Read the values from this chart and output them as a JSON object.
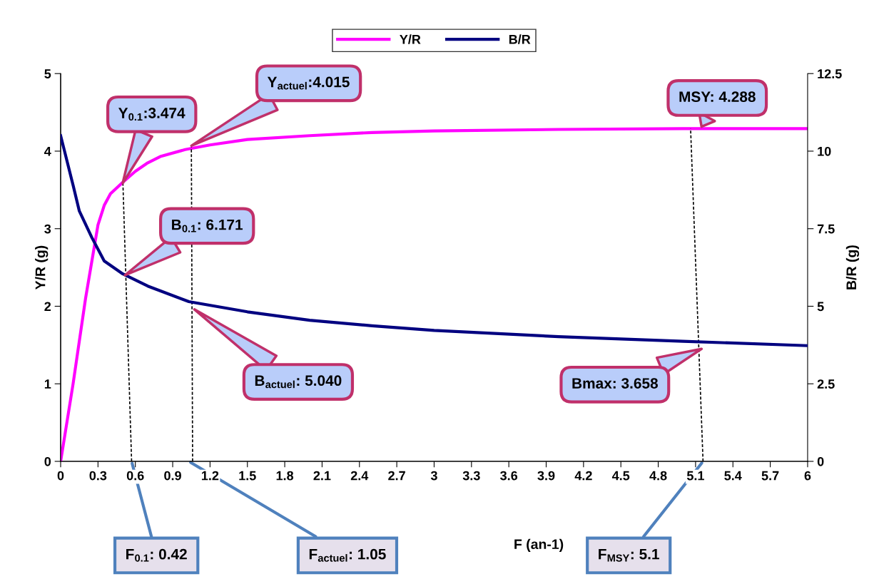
{
  "chart_data": {
    "type": "line",
    "xlabel": "F (an-1)",
    "ylabel": "Y/R (g)",
    "y2label": "B/R (g)",
    "series": [
      {
        "name": "Y/R",
        "color": "#ff00ff",
        "x": [
          0,
          0.1,
          0.2,
          0.3,
          0.35,
          0.4,
          0.5,
          0.6,
          0.7,
          0.8,
          1.0,
          1.2,
          1.5,
          2.0,
          2.5,
          3.0,
          4.0,
          5.0,
          6.0
        ],
        "values": [
          0,
          1.0,
          2.1,
          3.05,
          3.3,
          3.45,
          3.6,
          3.74,
          3.85,
          3.93,
          4.02,
          4.08,
          4.15,
          4.2,
          4.24,
          4.26,
          4.28,
          4.29,
          4.29
        ]
      },
      {
        "name": "B/R",
        "color": "#000080",
        "axis": "y2",
        "x": [
          0,
          0.1,
          0.15,
          0.25,
          0.35,
          0.5,
          0.7,
          1.03,
          1.5,
          2.0,
          2.5,
          3.0,
          4.0,
          5.0,
          6.0
        ],
        "values": [
          10.5,
          8.9,
          8.07,
          7.22,
          6.46,
          6.04,
          5.65,
          5.15,
          4.82,
          4.55,
          4.37,
          4.22,
          4.02,
          3.87,
          3.73
        ]
      },
      {
        "color": "#000000",
        "line_style": "dashed",
        "x": [
          0.57,
          0.5
        ],
        "values": [
          0,
          3.6
        ]
      },
      {
        "color": "#000000",
        "line_style": "dashed",
        "x": [
          1.06,
          1.05
        ],
        "values": [
          0,
          4.05
        ]
      },
      {
        "color": "#000000",
        "line_style": "dashed",
        "x": [
          5.16,
          5.06
        ],
        "values": [
          0,
          4.29
        ]
      }
    ],
    "xlim": [
      0,
      6
    ],
    "xticks": [
      0,
      0.3,
      0.6,
      0.9,
      1.2,
      1.5,
      1.8,
      2.1,
      2.4,
      2.7,
      3,
      3.3,
      3.6,
      3.9,
      4.2,
      4.5,
      4.8,
      5.1,
      5.4,
      5.7,
      6
    ],
    "ylim": [
      0,
      5
    ],
    "yticks": [
      0,
      1,
      2,
      3,
      4,
      5
    ],
    "y2lim": [
      0,
      12.5
    ],
    "y2ticks": [
      0,
      2.5,
      5,
      7.5,
      10,
      12.5
    ],
    "grid": false,
    "legend": "top",
    "annotations": [
      "Y$_{0.1}$:3.474",
      "Y$_{actuel}$:4.015",
      "MSY: 4.288",
      "B$_{0.1}$: 6.171",
      "B$_{actuel}$: 5.040",
      "Bmax: 3.658",
      {
        "text": "F$_{0.1}$: 0.42",
        "x": 0.57,
        "y": 0
      },
      {
        "text": "F$_{actuel}$: 1.05",
        "x": 1.03,
        "y": 0
      },
      {
        "text": "F$_{MSY}$: 5.1",
        "x": 5.16,
        "y": 0
      }
    ]
  }
}
